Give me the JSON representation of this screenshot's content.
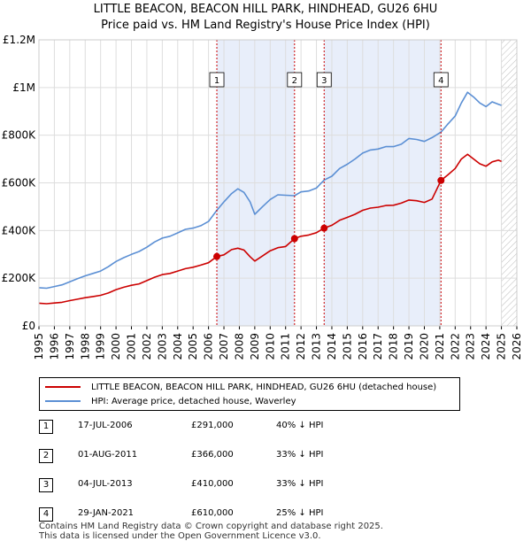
{
  "title_line1": "LITTLE BEACON, BEACON HILL PARK, HINDHEAD, GU26 6HU",
  "title_line2": "Price paid vs. HM Land Registry's House Price Index (HPI)",
  "chart_data": {
    "type": "line",
    "title": "LITTLE BEACON, BEACON HILL PARK, HINDHEAD, GU26 6HU — Price paid vs. HM Land Registry's House Price Index (HPI)",
    "xlim": [
      1995,
      2026
    ],
    "ylim": [
      0,
      1200000
    ],
    "y_ticks": [
      {
        "value": 0,
        "label": "£0"
      },
      {
        "value": 200000,
        "label": "£200K"
      },
      {
        "value": 400000,
        "label": "£400K"
      },
      {
        "value": 600000,
        "label": "£600K"
      },
      {
        "value": 800000,
        "label": "£800K"
      },
      {
        "value": 1000000,
        "label": "£1M"
      },
      {
        "value": 1200000,
        "label": "£1.2M"
      }
    ],
    "x_ticks": [
      "1995",
      "1996",
      "1997",
      "1998",
      "1999",
      "2000",
      "2001",
      "2002",
      "2003",
      "2004",
      "2005",
      "2006",
      "2007",
      "2008",
      "2009",
      "2010",
      "2011",
      "2012",
      "2013",
      "2014",
      "2015",
      "2016",
      "2017",
      "2018",
      "2019",
      "2020",
      "2021",
      "2022",
      "2023",
      "2024",
      "2025",
      "2026"
    ],
    "shaded_periods": [
      [
        2006.54,
        2011.58
      ],
      [
        2013.5,
        2021.08
      ]
    ],
    "hatched_after": 2025.0,
    "series": [
      {
        "name": "LITTLE BEACON, BEACON HILL PARK, HINDHEAD, GU26 6HU (detached house)",
        "color": "#cc0000",
        "points": [
          [
            1995,
            95000
          ],
          [
            1995.5,
            93000
          ],
          [
            1996,
            96000
          ],
          [
            1996.5,
            99000
          ],
          [
            1997,
            106000
          ],
          [
            1997.5,
            112000
          ],
          [
            1998,
            118000
          ],
          [
            1998.5,
            123000
          ],
          [
            1999,
            128000
          ],
          [
            1999.5,
            138000
          ],
          [
            2000,
            152000
          ],
          [
            2000.5,
            162000
          ],
          [
            2001,
            170000
          ],
          [
            2001.5,
            176000
          ],
          [
            2002,
            190000
          ],
          [
            2002.5,
            204000
          ],
          [
            2003,
            215000
          ],
          [
            2003.5,
            220000
          ],
          [
            2004,
            230000
          ],
          [
            2004.5,
            240000
          ],
          [
            2005,
            246000
          ],
          [
            2005.5,
            255000
          ],
          [
            2006,
            265000
          ],
          [
            2006.54,
            291000
          ],
          [
            2007,
            298000
          ],
          [
            2007.5,
            320000
          ],
          [
            2007.9,
            326000
          ],
          [
            2008.3,
            318000
          ],
          [
            2008.7,
            290000
          ],
          [
            2009,
            272000
          ],
          [
            2009.5,
            293000
          ],
          [
            2010,
            315000
          ],
          [
            2010.5,
            328000
          ],
          [
            2011,
            333000
          ],
          [
            2011.58,
            366000
          ],
          [
            2012,
            376000
          ],
          [
            2012.5,
            381000
          ],
          [
            2013,
            391000
          ],
          [
            2013.5,
            410000
          ],
          [
            2014,
            422000
          ],
          [
            2014.5,
            443000
          ],
          [
            2015,
            455000
          ],
          [
            2015.5,
            468000
          ],
          [
            2016,
            485000
          ],
          [
            2016.5,
            494000
          ],
          [
            2017,
            498000
          ],
          [
            2017.5,
            505000
          ],
          [
            2018,
            506000
          ],
          [
            2018.5,
            515000
          ],
          [
            2019,
            528000
          ],
          [
            2019.5,
            525000
          ],
          [
            2020,
            518000
          ],
          [
            2020.5,
            532000
          ],
          [
            2021.08,
            610000
          ],
          [
            2021.5,
            632000
          ],
          [
            2022,
            660000
          ],
          [
            2022.4,
            700000
          ],
          [
            2022.8,
            720000
          ],
          [
            2023.2,
            700000
          ],
          [
            2023.6,
            680000
          ],
          [
            2024,
            670000
          ],
          [
            2024.4,
            688000
          ],
          [
            2024.8,
            695000
          ],
          [
            2025,
            690000
          ]
        ]
      },
      {
        "name": "HPI: Average price, detached house, Waverley",
        "color": "#5b8fd4",
        "points": [
          [
            1995,
            160000
          ],
          [
            1995.5,
            158000
          ],
          [
            1996,
            165000
          ],
          [
            1996.5,
            172000
          ],
          [
            1997,
            185000
          ],
          [
            1997.5,
            198000
          ],
          [
            1998,
            210000
          ],
          [
            1998.5,
            220000
          ],
          [
            1999,
            230000
          ],
          [
            1999.5,
            248000
          ],
          [
            2000,
            270000
          ],
          [
            2000.5,
            286000
          ],
          [
            2001,
            300000
          ],
          [
            2001.5,
            312000
          ],
          [
            2002,
            330000
          ],
          [
            2002.5,
            352000
          ],
          [
            2003,
            368000
          ],
          [
            2003.5,
            376000
          ],
          [
            2004,
            390000
          ],
          [
            2004.5,
            405000
          ],
          [
            2005,
            410000
          ],
          [
            2005.5,
            420000
          ],
          [
            2006,
            438000
          ],
          [
            2006.54,
            485000
          ],
          [
            2007,
            520000
          ],
          [
            2007.5,
            555000
          ],
          [
            2007.9,
            575000
          ],
          [
            2008.3,
            560000
          ],
          [
            2008.7,
            520000
          ],
          [
            2009,
            468000
          ],
          [
            2009.5,
            500000
          ],
          [
            2010,
            530000
          ],
          [
            2010.5,
            550000
          ],
          [
            2011,
            548000
          ],
          [
            2011.58,
            546000
          ],
          [
            2012,
            562000
          ],
          [
            2012.5,
            566000
          ],
          [
            2013,
            578000
          ],
          [
            2013.5,
            612000
          ],
          [
            2014,
            628000
          ],
          [
            2014.5,
            660000
          ],
          [
            2015,
            678000
          ],
          [
            2015.5,
            700000
          ],
          [
            2016,
            725000
          ],
          [
            2016.5,
            738000
          ],
          [
            2017,
            742000
          ],
          [
            2017.5,
            752000
          ],
          [
            2018,
            752000
          ],
          [
            2018.5,
            762000
          ],
          [
            2019,
            786000
          ],
          [
            2019.5,
            782000
          ],
          [
            2020,
            774000
          ],
          [
            2020.5,
            790000
          ],
          [
            2021.08,
            813000
          ],
          [
            2021.5,
            845000
          ],
          [
            2022,
            880000
          ],
          [
            2022.4,
            935000
          ],
          [
            2022.8,
            980000
          ],
          [
            2023.2,
            960000
          ],
          [
            2023.6,
            935000
          ],
          [
            2024,
            920000
          ],
          [
            2024.4,
            940000
          ],
          [
            2024.8,
            930000
          ],
          [
            2025,
            925000
          ]
        ]
      }
    ],
    "events": [
      {
        "label": "1",
        "x": 2006.54,
        "price": 291000
      },
      {
        "label": "2",
        "x": 2011.58,
        "price": 366000
      },
      {
        "label": "3",
        "x": 2013.5,
        "price": 410000
      },
      {
        "label": "4",
        "x": 2021.08,
        "price": 610000
      }
    ]
  },
  "legend": {
    "property": "LITTLE BEACON, BEACON HILL PARK, HINDHEAD, GU26 6HU (detached house)",
    "hpi": "HPI: Average price, detached house, Waverley"
  },
  "table": [
    {
      "num": "1",
      "date": "17-JUL-2006",
      "price": "£291,000",
      "hpi": "40% ↓ HPI"
    },
    {
      "num": "2",
      "date": "01-AUG-2011",
      "price": "£366,000",
      "hpi": "33% ↓ HPI"
    },
    {
      "num": "3",
      "date": "04-JUL-2013",
      "price": "£410,000",
      "hpi": "33% ↓ HPI"
    },
    {
      "num": "4",
      "date": "29-JAN-2021",
      "price": "£610,000",
      "hpi": "25% ↓ HPI"
    }
  ],
  "footer_line1": "Contains HM Land Registry data © Crown copyright and database right 2025.",
  "footer_line2": "This data is licensed under the Open Government Licence v3.0."
}
